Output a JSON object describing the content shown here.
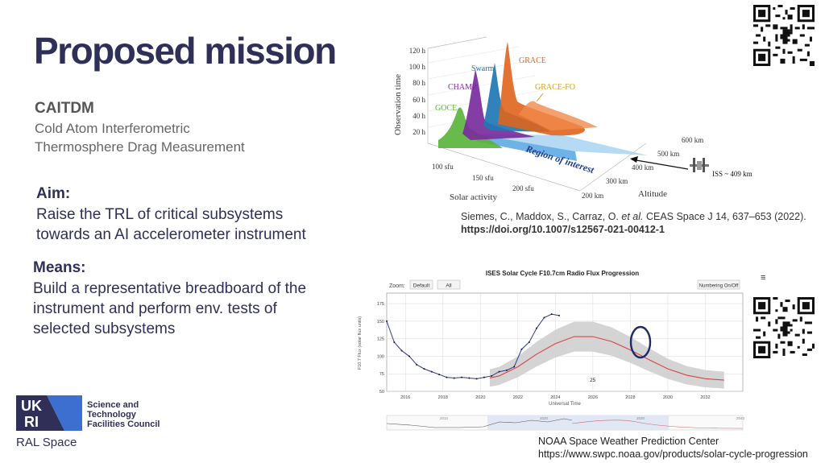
{
  "slide": {
    "title": "Proposed mission",
    "acronym": "CAITDM",
    "subtitle_line1": "Cold Atom Interferometric",
    "subtitle_line2": "Thermosphere Drag Measurement",
    "aim_heading": "Aim:",
    "aim_line1": "Raise the TRL of critical subsystems",
    "aim_line2": "towards an AI accelerometer instrument",
    "means_heading": "Means:",
    "means_line1": "Build a representative breadboard of the",
    "means_line2": "instrument and perform env. tests of",
    "means_line3": "selected subsystems"
  },
  "figure1": {
    "y_axis_label": "Observation time",
    "y_ticks": [
      "20 h",
      "40 h",
      "60 h",
      "80 h",
      "100 h",
      "120 h"
    ],
    "solar_label": "Solar activity",
    "solar_ticks": [
      "100 sfu",
      "150 sfu",
      "200 sfu"
    ],
    "alt_label": "Altitude",
    "alt_ticks": [
      "200 km",
      "300 km",
      "400 km",
      "500 km",
      "600 km"
    ],
    "missions": [
      "GOCE",
      "CHAMP",
      "Swarm",
      "GRACE",
      "GRACE-FO"
    ],
    "mission_colors": [
      "#59b23a",
      "#7a2d9c",
      "#1f77b4",
      "#e0641c",
      "#d4a017"
    ],
    "region_label": "Region of interest",
    "iss_label": "ISS ~ 409 km"
  },
  "reference": {
    "authors_plain": "Siemes, C., Maddox, S., Carraz, O. ",
    "authors_italic": "et al.",
    "journal": " CEAS Space J 14, 637–653 (2022).",
    "doi": "https://doi.org/10.1007/s12567-021-00412-1"
  },
  "figure2": {
    "title": "ISES Solar Cycle F10.7cm Radio Flux Progression",
    "zoom_label": "Zoom:",
    "btn_default": "Default",
    "btn_all": "All",
    "btn_numbering": "Numbering On/Off",
    "menu_glyph": "≡",
    "ylabel": "F10.7 Flux (solar flux units)",
    "xlabel": "Universal Time",
    "y_ticks": [
      "50",
      "75",
      "100",
      "125",
      "150",
      "175"
    ],
    "x_ticks": [
      "2016",
      "2018",
      "2020",
      "2022",
      "2024",
      "2026",
      "2028",
      "2030",
      "2032"
    ],
    "cycle_label": "25",
    "nav_ticks": [
      "2010",
      "2020",
      "2030",
      "2040"
    ]
  },
  "credit": {
    "line1": "NOAA Space Weather Prediction Center",
    "line2": "https://www.swpc.noaa.gov/products/solar-cycle-progression"
  },
  "logo": {
    "letters_top": "UK",
    "letters_bottom": "RI",
    "org_line1": "Science and",
    "org_line2": "Technology",
    "org_line3": "Facilities Council",
    "dept": "RAL Space",
    "colors": [
      "#2f2f58",
      "#3d6fd1"
    ]
  },
  "chart_data": {
    "type": "line",
    "title": "ISES Solar Cycle F10.7cm Radio Flux Progression",
    "xlabel": "Universal Time",
    "ylabel": "F10.7 Flux (solar flux units)",
    "xlim": [
      2015,
      2034
    ],
    "ylim": [
      50,
      190
    ],
    "series": [
      {
        "kind": "observed",
        "x": [
          2015.0,
          2015.4,
          2015.8,
          2016.2,
          2016.6,
          2017.0,
          2017.4,
          2017.8,
          2018.2,
          2018.6,
          2019.0,
          2019.4,
          2019.8,
          2020.2,
          2020.6,
          2021.0,
          2021.4,
          2021.8,
          2022.2,
          2022.6,
          2023.0,
          2023.4,
          2023.8,
          2024.2
        ],
        "y": [
          150,
          120,
          108,
          100,
          88,
          82,
          78,
          74,
          70,
          69,
          70,
          69,
          68,
          70,
          72,
          78,
          80,
          85,
          110,
          120,
          140,
          155,
          160,
          158
        ]
      },
      {
        "kind": "predicted",
        "x": [
          2020.5,
          2021,
          2022,
          2023,
          2024,
          2025,
          2026,
          2027,
          2028,
          2029,
          2030,
          2031,
          2032,
          2033
        ],
        "y": [
          69,
          72,
          85,
          103,
          118,
          128,
          128,
          121,
          109,
          95,
          82,
          73,
          68,
          66
        ]
      }
    ]
  }
}
